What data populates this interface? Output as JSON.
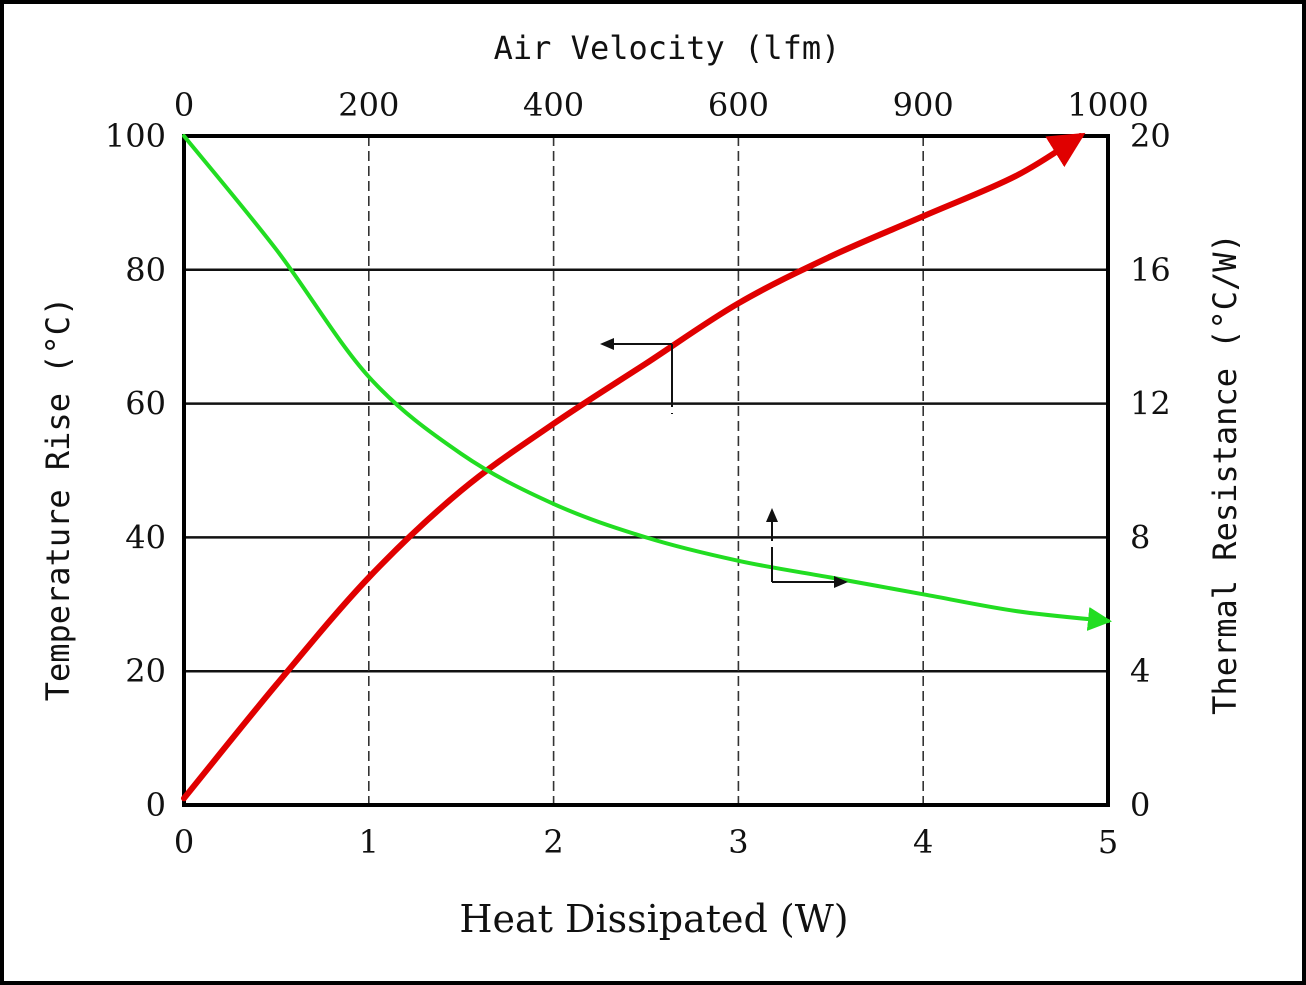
{
  "chart_data": {
    "type": "line",
    "title": "Air Velocity (lfm)",
    "xlabel": "Heat Dissipated (W)",
    "ylabel": "Temperature Rise (°C)",
    "y2label": "Thermal Resistance (°C/W)",
    "xlim": [
      0,
      5
    ],
    "ylim": [
      0,
      100
    ],
    "y2lim": [
      0,
      20
    ],
    "x_ticks": [
      "0",
      "1",
      "2",
      "3",
      "4",
      "5"
    ],
    "x_top_ticks": [
      "0",
      "200",
      "400",
      "600",
      "900",
      "1000"
    ],
    "y_ticks": [
      "0",
      "20",
      "40",
      "60",
      "80",
      "100"
    ],
    "y2_ticks": [
      "0",
      "4",
      "8",
      "12",
      "16",
      "20"
    ],
    "grid": true,
    "series": [
      {
        "name": "Temperature Rise vs Heat Dissipated",
        "axis": "bottom-left",
        "color": "#e00000",
        "x": [
          0,
          0.5,
          1,
          1.5,
          2,
          2.5,
          3,
          3.5,
          4,
          4.5,
          4.85
        ],
        "y": [
          1,
          18,
          34,
          47,
          57,
          66,
          75,
          82,
          88,
          94,
          100
        ]
      },
      {
        "name": "Thermal Resistance vs Air Velocity",
        "axis": "top-right",
        "color": "#22dd22",
        "x": [
          0,
          100,
          200,
          300,
          400,
          500,
          600,
          700,
          800,
          900,
          1000
        ],
        "y": [
          20,
          16.6,
          12.8,
          10.5,
          9.0,
          8.0,
          7.3,
          6.8,
          6.3,
          5.8,
          5.5
        ]
      }
    ],
    "annotations": [
      {
        "type": "arrow",
        "direction": "left",
        "meaning": "upper curve reads on left axis"
      },
      {
        "type": "arrow",
        "direction": "right",
        "meaning": "lower curve reads on right axis"
      }
    ]
  }
}
